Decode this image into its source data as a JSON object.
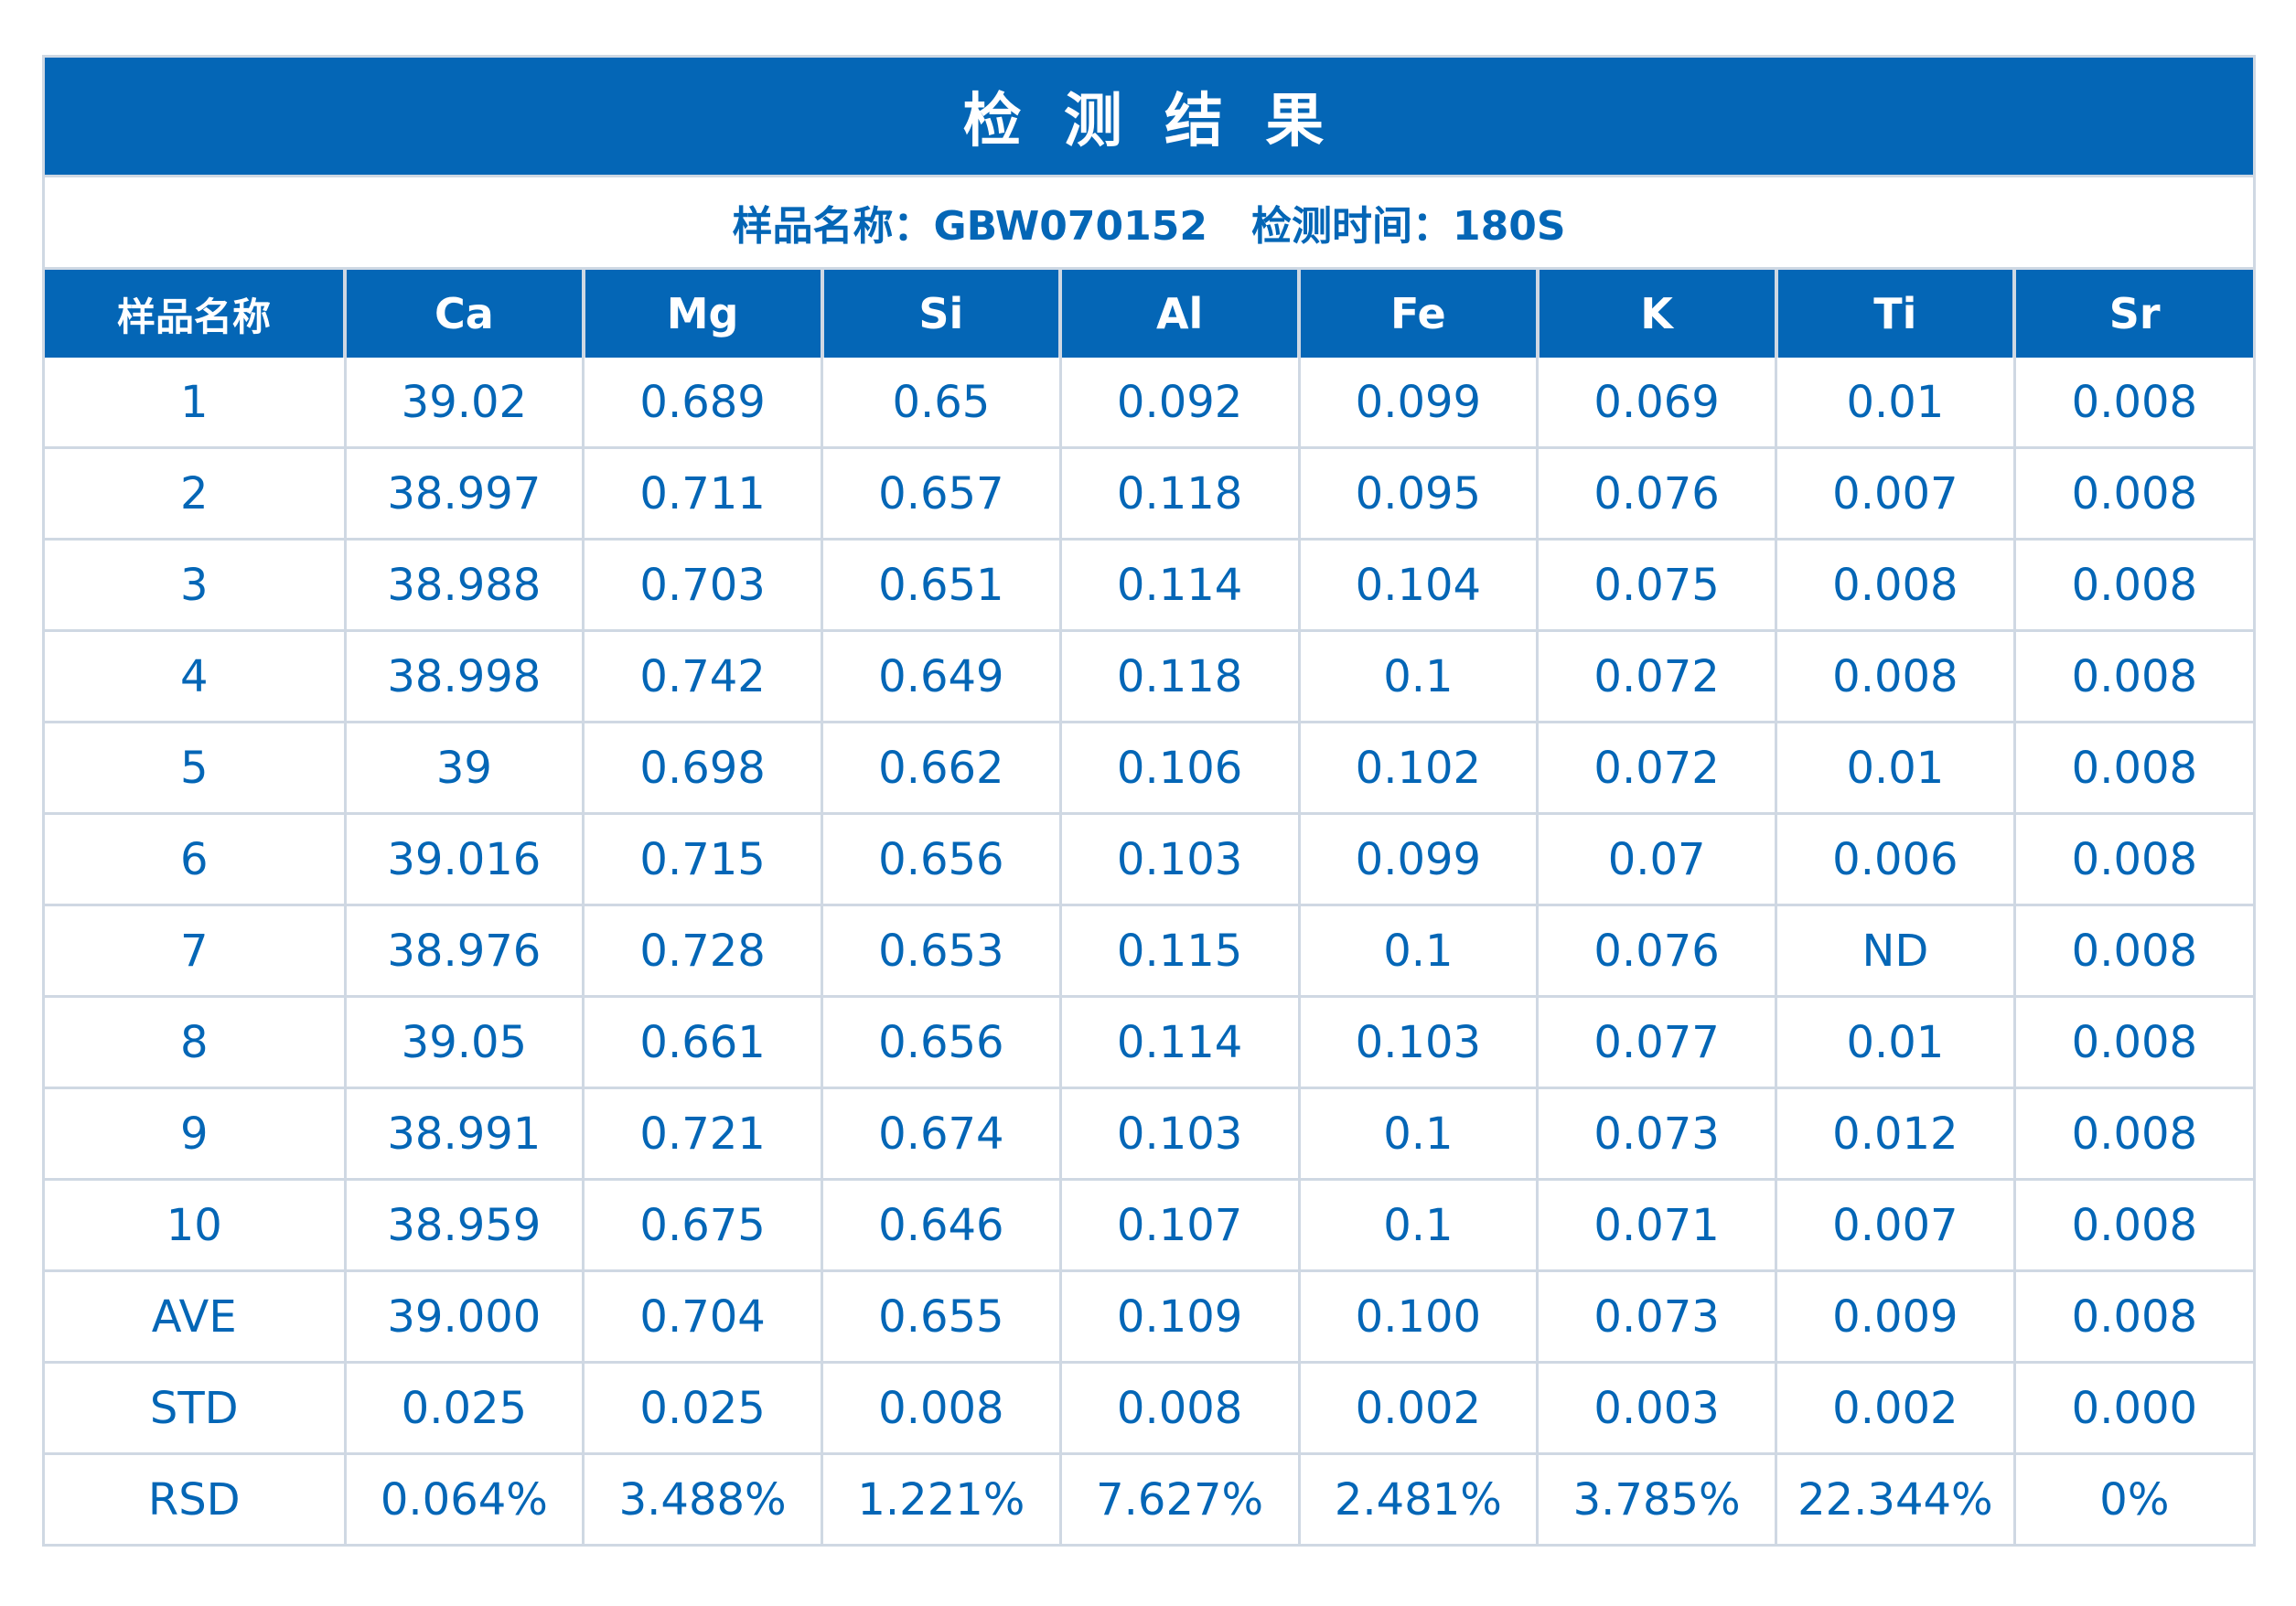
{
  "title": "检 测 结 果",
  "info": {
    "sample_label": "样品名称：GBW070152",
    "time_label": "检测时间：180S"
  },
  "colors": {
    "accent": "#0466b6",
    "border": "#cfd8e3",
    "background": "#ffffff"
  },
  "table": {
    "headers": [
      "样品名称",
      "Ca",
      "Mg",
      "Si",
      "Al",
      "Fe",
      "K",
      "Ti",
      "Sr"
    ],
    "rows": [
      [
        "1",
        "39.02",
        "0.689",
        "0.65",
        "0.092",
        "0.099",
        "0.069",
        "0.01",
        "0.008"
      ],
      [
        "2",
        "38.997",
        "0.711",
        "0.657",
        "0.118",
        "0.095",
        "0.076",
        "0.007",
        "0.008"
      ],
      [
        "3",
        "38.988",
        "0.703",
        "0.651",
        "0.114",
        "0.104",
        "0.075",
        "0.008",
        "0.008"
      ],
      [
        "4",
        "38.998",
        "0.742",
        "0.649",
        "0.118",
        "0.1",
        "0.072",
        "0.008",
        "0.008"
      ],
      [
        "5",
        "39",
        "0.698",
        "0.662",
        "0.106",
        "0.102",
        "0.072",
        "0.01",
        "0.008"
      ],
      [
        "6",
        "39.016",
        "0.715",
        "0.656",
        "0.103",
        "0.099",
        "0.07",
        "0.006",
        "0.008"
      ],
      [
        "7",
        "38.976",
        "0.728",
        "0.653",
        "0.115",
        "0.1",
        "0.076",
        "ND",
        "0.008"
      ],
      [
        "8",
        "39.05",
        "0.661",
        "0.656",
        "0.114",
        "0.103",
        "0.077",
        "0.01",
        "0.008"
      ],
      [
        "9",
        "38.991",
        "0.721",
        "0.674",
        "0.103",
        "0.1",
        "0.073",
        "0.012",
        "0.008"
      ],
      [
        "10",
        "38.959",
        "0.675",
        "0.646",
        "0.107",
        "0.1",
        "0.071",
        "0.007",
        "0.008"
      ],
      [
        "AVE",
        "39.000",
        "0.704",
        "0.655",
        "0.109",
        "0.100",
        "0.073",
        "0.009",
        "0.008"
      ],
      [
        "STD",
        "0.025",
        "0.025",
        "0.008",
        "0.008",
        "0.002",
        "0.003",
        "0.002",
        "0.000"
      ],
      [
        "RSD",
        "0.064%",
        "3.488%",
        "1.221%",
        "7.627%",
        "2.481%",
        "3.785%",
        "22.344%",
        "0%"
      ]
    ]
  }
}
